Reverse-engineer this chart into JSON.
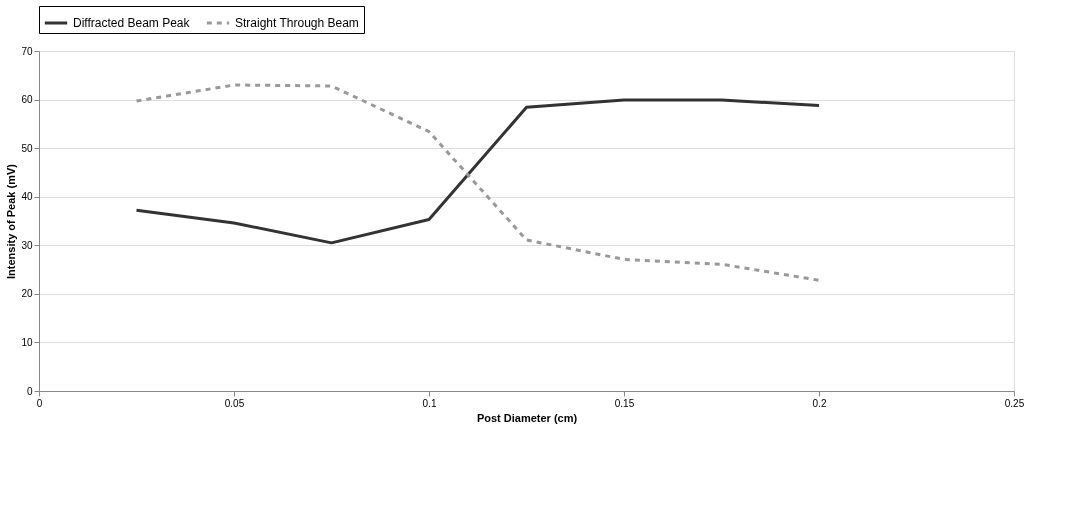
{
  "chart_data": {
    "type": "line",
    "xlabel": "Post Diameter (cm)",
    "ylabel": "Intensity of Peak (mV)",
    "xlim": [
      0,
      0.25
    ],
    "xticks": [
      0,
      0.05,
      0.1,
      0.15,
      0.2,
      0.25
    ],
    "ylim": [
      0,
      70
    ],
    "yticks": [
      0,
      10,
      20,
      30,
      40,
      50,
      60,
      70
    ],
    "x": [
      0.025,
      0.05,
      0.075,
      0.1,
      0.125,
      0.15,
      0.175,
      0.2
    ],
    "grid": "y",
    "legend": "top",
    "marker": "none",
    "series": [
      {
        "name": "Diffracted Beam Peak",
        "color": "#333333",
        "line_style": "solid",
        "values": [
          37.2,
          34.6,
          30.5,
          35.3,
          58.4,
          59.9,
          59.9,
          58.8
        ]
      },
      {
        "name": "Straight Through Beam",
        "color": "#999999",
        "line_style": "dotted",
        "values": [
          59.7,
          63.0,
          62.8,
          53.4,
          31.1,
          27.1,
          26.1,
          22.8
        ]
      }
    ]
  }
}
